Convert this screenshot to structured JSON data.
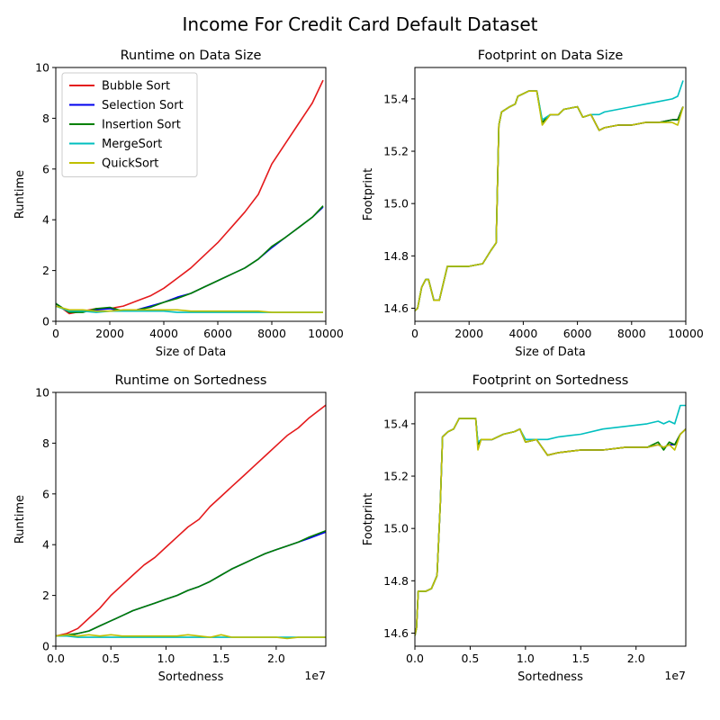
{
  "figure": {
    "suptitle": "Income For Credit Card Default Dataset"
  },
  "colors": {
    "Bubble Sort": "#e41a1c",
    "Selection Sort": "#0000ee",
    "Insertion Sort": "#008000",
    "MergeSort": "#00bfbf",
    "QuickSort": "#bfbf00"
  },
  "chart_data": [
    {
      "type": "line",
      "title": "Runtime on Data Size",
      "xlabel": "Size of Data",
      "ylabel": "Runtime",
      "xlim": [
        0,
        10000
      ],
      "ylim": [
        0,
        10
      ],
      "xticks": [
        0,
        2000,
        4000,
        6000,
        8000,
        10000
      ],
      "xtick_labels": [
        "0",
        "2000",
        "4000",
        "6000",
        "8000",
        "10000"
      ],
      "yticks": [
        0,
        2,
        4,
        6,
        8,
        10
      ],
      "ytick_labels": [
        "0",
        "2",
        "4",
        "6",
        "8",
        "10"
      ],
      "legend": "upper-left",
      "x": [
        0,
        500,
        1000,
        1500,
        2000,
        2500,
        3000,
        3500,
        4000,
        4500,
        5000,
        5500,
        6000,
        6500,
        7000,
        7500,
        8000,
        8500,
        9000,
        9500,
        9900
      ],
      "series": [
        {
          "name": "Bubble Sort",
          "values": [
            0.7,
            0.3,
            0.4,
            0.5,
            0.5,
            0.6,
            0.8,
            1.0,
            1.3,
            1.7,
            2.1,
            2.6,
            3.1,
            3.7,
            4.3,
            5.0,
            6.2,
            7.0,
            7.8,
            8.6,
            9.5
          ]
        },
        {
          "name": "Selection Sort",
          "values": [
            0.7,
            0.35,
            0.4,
            0.45,
            0.5,
            0.4,
            0.45,
            0.6,
            0.75,
            0.95,
            1.1,
            1.35,
            1.6,
            1.85,
            2.1,
            2.45,
            2.9,
            3.3,
            3.7,
            4.1,
            4.5
          ]
        },
        {
          "name": "Insertion Sort",
          "values": [
            0.7,
            0.35,
            0.35,
            0.5,
            0.55,
            0.4,
            0.45,
            0.55,
            0.75,
            0.9,
            1.1,
            1.35,
            1.6,
            1.85,
            2.1,
            2.45,
            2.95,
            3.3,
            3.7,
            4.1,
            4.55
          ]
        },
        {
          "name": "MergeSort",
          "values": [
            0.6,
            0.4,
            0.4,
            0.35,
            0.4,
            0.4,
            0.4,
            0.4,
            0.4,
            0.35,
            0.35,
            0.35,
            0.35,
            0.35,
            0.35,
            0.35,
            0.35,
            0.35,
            0.35,
            0.35,
            0.35
          ]
        },
        {
          "name": "QuickSort",
          "values": [
            0.6,
            0.45,
            0.45,
            0.4,
            0.4,
            0.45,
            0.45,
            0.45,
            0.45,
            0.45,
            0.4,
            0.4,
            0.4,
            0.4,
            0.4,
            0.4,
            0.35,
            0.35,
            0.35,
            0.35,
            0.35
          ]
        }
      ]
    },
    {
      "type": "line",
      "title": "Footprint on Data Size",
      "xlabel": "Size of Data",
      "ylabel": "Footprint",
      "xlim": [
        0,
        10000
      ],
      "ylim": [
        14.55,
        15.52
      ],
      "xticks": [
        0,
        2000,
        4000,
        6000,
        8000,
        10000
      ],
      "xtick_labels": [
        "0",
        "2000",
        "4000",
        "6000",
        "8000",
        "10000"
      ],
      "yticks": [
        14.6,
        14.8,
        15.0,
        15.2,
        15.4
      ],
      "ytick_labels": [
        "14.6",
        "14.8",
        "15.0",
        "15.2",
        "15.4"
      ],
      "x": [
        0,
        100,
        250,
        400,
        500,
        700,
        900,
        1200,
        1500,
        2000,
        2500,
        2800,
        3000,
        3100,
        3200,
        3500,
        3700,
        3800,
        4000,
        4200,
        4500,
        4700,
        5000,
        5300,
        5500,
        6000,
        6200,
        6500,
        6800,
        7000,
        7500,
        8000,
        8500,
        9000,
        9500,
        9700,
        9900
      ],
      "series": [
        {
          "name": "Bubble Sort",
          "values": [
            14.59,
            14.6,
            14.68,
            14.71,
            14.71,
            14.63,
            14.63,
            14.76,
            14.76,
            14.76,
            14.77,
            14.82,
            14.85,
            15.3,
            15.35,
            15.37,
            15.38,
            15.41,
            15.42,
            15.43,
            15.43,
            15.31,
            15.34,
            15.34,
            15.36,
            15.37,
            15.33,
            15.34,
            15.28,
            15.29,
            15.3,
            15.3,
            15.31,
            15.31,
            15.32,
            15.32,
            15.37
          ]
        },
        {
          "name": "Selection Sort",
          "values": [
            14.59,
            14.6,
            14.68,
            14.71,
            14.71,
            14.63,
            14.63,
            14.76,
            14.76,
            14.76,
            14.77,
            14.82,
            14.85,
            15.3,
            15.35,
            15.37,
            15.38,
            15.41,
            15.42,
            15.43,
            15.43,
            15.31,
            15.34,
            15.34,
            15.36,
            15.37,
            15.33,
            15.34,
            15.28,
            15.29,
            15.3,
            15.3,
            15.31,
            15.31,
            15.32,
            15.32,
            15.37
          ]
        },
        {
          "name": "Insertion Sort",
          "values": [
            14.59,
            14.6,
            14.68,
            14.71,
            14.71,
            14.63,
            14.63,
            14.76,
            14.76,
            14.76,
            14.77,
            14.82,
            14.85,
            15.3,
            15.35,
            15.37,
            15.38,
            15.41,
            15.42,
            15.43,
            15.43,
            15.31,
            15.34,
            15.34,
            15.36,
            15.37,
            15.33,
            15.34,
            15.28,
            15.29,
            15.3,
            15.3,
            15.31,
            15.31,
            15.32,
            15.32,
            15.37
          ]
        },
        {
          "name": "MergeSort",
          "values": [
            14.59,
            14.6,
            14.68,
            14.71,
            14.71,
            14.63,
            14.63,
            14.76,
            14.76,
            14.76,
            14.77,
            14.82,
            14.85,
            15.3,
            15.35,
            15.37,
            15.38,
            15.41,
            15.42,
            15.43,
            15.43,
            15.32,
            15.34,
            15.34,
            15.36,
            15.37,
            15.33,
            15.34,
            15.34,
            15.35,
            15.36,
            15.37,
            15.38,
            15.39,
            15.4,
            15.41,
            15.47
          ]
        },
        {
          "name": "QuickSort",
          "values": [
            14.59,
            14.6,
            14.68,
            14.71,
            14.71,
            14.63,
            14.63,
            14.76,
            14.76,
            14.76,
            14.77,
            14.82,
            14.85,
            15.3,
            15.35,
            15.37,
            15.38,
            15.41,
            15.42,
            15.43,
            15.43,
            15.3,
            15.34,
            15.34,
            15.36,
            15.37,
            15.33,
            15.34,
            15.28,
            15.29,
            15.3,
            15.3,
            15.31,
            15.31,
            15.31,
            15.3,
            15.37
          ]
        }
      ]
    },
    {
      "type": "line",
      "title": "Runtime on Sortedness",
      "xlabel": "Sortedness",
      "ylabel": "Runtime",
      "x_offset_label": "1e7",
      "xlim": [
        0,
        24500000
      ],
      "ylim": [
        0,
        10
      ],
      "xticks": [
        0,
        5000000,
        10000000,
        15000000,
        20000000
      ],
      "xtick_labels": [
        "0.0",
        "0.5",
        "1.0",
        "1.5",
        "2.0"
      ],
      "yticks": [
        0,
        2,
        4,
        6,
        8,
        10
      ],
      "ytick_labels": [
        "0",
        "2",
        "4",
        "6",
        "8",
        "10"
      ],
      "x": [
        0,
        1000000,
        2000000,
        3000000,
        4000000,
        5000000,
        6000000,
        7000000,
        8000000,
        9000000,
        10000000,
        11000000,
        12000000,
        13000000,
        14000000,
        15000000,
        16000000,
        17000000,
        18000000,
        19000000,
        20000000,
        21000000,
        22000000,
        23000000,
        24500000
      ],
      "series": [
        {
          "name": "Bubble Sort",
          "values": [
            0.4,
            0.5,
            0.7,
            1.1,
            1.5,
            2.0,
            2.4,
            2.8,
            3.2,
            3.5,
            3.9,
            4.3,
            4.7,
            5.0,
            5.5,
            5.9,
            6.3,
            6.7,
            7.1,
            7.5,
            7.9,
            8.3,
            8.6,
            9.0,
            9.5
          ]
        },
        {
          "name": "Selection Sort",
          "values": [
            0.4,
            0.4,
            0.5,
            0.6,
            0.8,
            1.0,
            1.2,
            1.4,
            1.55,
            1.7,
            1.85,
            2.0,
            2.2,
            2.35,
            2.55,
            2.8,
            3.05,
            3.25,
            3.45,
            3.65,
            3.8,
            3.95,
            4.1,
            4.25,
            4.5
          ]
        },
        {
          "name": "Insertion Sort",
          "values": [
            0.4,
            0.45,
            0.5,
            0.6,
            0.8,
            1.0,
            1.2,
            1.4,
            1.55,
            1.7,
            1.85,
            2.0,
            2.2,
            2.35,
            2.55,
            2.8,
            3.05,
            3.25,
            3.45,
            3.65,
            3.8,
            3.95,
            4.1,
            4.3,
            4.55
          ]
        },
        {
          "name": "MergeSort",
          "values": [
            0.4,
            0.4,
            0.35,
            0.35,
            0.35,
            0.35,
            0.35,
            0.35,
            0.35,
            0.35,
            0.35,
            0.35,
            0.35,
            0.35,
            0.35,
            0.35,
            0.35,
            0.35,
            0.35,
            0.35,
            0.35,
            0.35,
            0.35,
            0.35,
            0.35
          ]
        },
        {
          "name": "QuickSort",
          "values": [
            0.4,
            0.45,
            0.4,
            0.45,
            0.4,
            0.45,
            0.4,
            0.4,
            0.4,
            0.4,
            0.4,
            0.4,
            0.45,
            0.4,
            0.35,
            0.45,
            0.35,
            0.35,
            0.35,
            0.35,
            0.35,
            0.3,
            0.35,
            0.35,
            0.35
          ]
        }
      ]
    },
    {
      "type": "line",
      "title": "Footprint on Sortedness",
      "xlabel": "Sortedness",
      "ylabel": "Footprint",
      "x_offset_label": "1e7",
      "xlim": [
        0,
        24500000
      ],
      "ylim": [
        14.55,
        15.52
      ],
      "xticks": [
        0,
        5000000,
        10000000,
        15000000,
        20000000
      ],
      "xtick_labels": [
        "0.0",
        "0.5",
        "1.0",
        "1.5",
        "2.0"
      ],
      "yticks": [
        14.6,
        14.8,
        15.0,
        15.2,
        15.4
      ],
      "ytick_labels": [
        "14.6",
        "14.8",
        "15.0",
        "15.2",
        "15.4"
      ],
      "x": [
        0,
        150000,
        300000,
        1000000,
        1500000,
        2000000,
        2300000,
        2500000,
        3000000,
        3500000,
        4000000,
        5000000,
        5500000,
        5700000,
        6000000,
        7000000,
        8000000,
        9000000,
        9500000,
        10000000,
        11000000,
        12000000,
        13000000,
        15000000,
        17000000,
        19000000,
        21000000,
        22000000,
        22500000,
        23000000,
        23500000,
        24000000,
        24500000
      ],
      "series": [
        {
          "name": "Bubble Sort",
          "values": [
            14.59,
            14.62,
            14.76,
            14.76,
            14.77,
            14.82,
            15.1,
            15.35,
            15.37,
            15.38,
            15.42,
            15.42,
            15.42,
            15.32,
            15.34,
            15.34,
            15.36,
            15.37,
            15.38,
            15.33,
            15.34,
            15.28,
            15.29,
            15.3,
            15.3,
            15.31,
            15.31,
            15.32,
            15.31,
            15.32,
            15.32,
            15.36,
            15.38
          ]
        },
        {
          "name": "Selection Sort",
          "values": [
            14.59,
            14.62,
            14.76,
            14.76,
            14.77,
            14.82,
            15.1,
            15.35,
            15.37,
            15.38,
            15.42,
            15.42,
            15.42,
            15.32,
            15.34,
            15.34,
            15.36,
            15.37,
            15.38,
            15.33,
            15.34,
            15.28,
            15.29,
            15.3,
            15.3,
            15.31,
            15.31,
            15.32,
            15.31,
            15.32,
            15.32,
            15.36,
            15.38
          ]
        },
        {
          "name": "Insertion Sort",
          "values": [
            14.59,
            14.62,
            14.76,
            14.76,
            14.77,
            14.82,
            15.1,
            15.35,
            15.37,
            15.38,
            15.42,
            15.42,
            15.42,
            15.32,
            15.34,
            15.34,
            15.36,
            15.37,
            15.38,
            15.33,
            15.34,
            15.28,
            15.29,
            15.3,
            15.3,
            15.31,
            15.31,
            15.33,
            15.3,
            15.33,
            15.32,
            15.36,
            15.38
          ]
        },
        {
          "name": "MergeSort",
          "values": [
            14.59,
            14.62,
            14.76,
            14.76,
            14.77,
            14.82,
            15.1,
            15.35,
            15.37,
            15.38,
            15.42,
            15.42,
            15.42,
            15.33,
            15.34,
            15.34,
            15.36,
            15.37,
            15.38,
            15.34,
            15.34,
            15.34,
            15.35,
            15.36,
            15.38,
            15.39,
            15.4,
            15.41,
            15.4,
            15.41,
            15.4,
            15.47,
            15.47
          ]
        },
        {
          "name": "QuickSort",
          "values": [
            14.59,
            14.62,
            14.76,
            14.76,
            14.77,
            14.82,
            15.1,
            15.35,
            15.37,
            15.38,
            15.42,
            15.42,
            15.42,
            15.3,
            15.34,
            15.34,
            15.36,
            15.37,
            15.38,
            15.33,
            15.34,
            15.28,
            15.29,
            15.3,
            15.3,
            15.31,
            15.31,
            15.32,
            15.31,
            15.32,
            15.3,
            15.36,
            15.38
          ]
        }
      ]
    }
  ]
}
